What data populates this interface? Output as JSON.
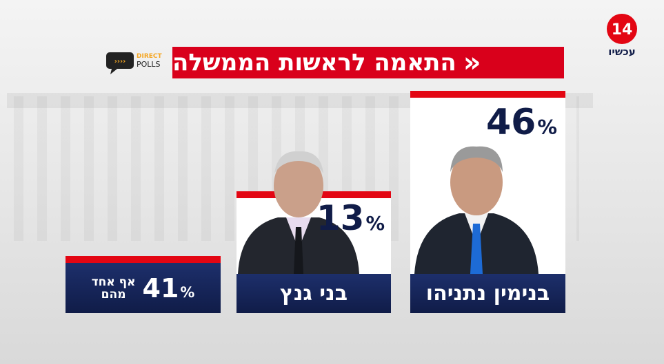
{
  "header": {
    "title": "התאמה לראשות הממשלה",
    "channel_number": "14",
    "channel_name": "עכשיו",
    "pollster": [
      "DIRECT",
      "POLLS"
    ]
  },
  "candidates": [
    {
      "name": "בנימין נתניהו",
      "value": "46",
      "unit": "%"
    },
    {
      "name": "בני גנץ",
      "value": "13",
      "unit": "%"
    }
  ],
  "none": {
    "label_lines": [
      "אף אחד",
      "מהם"
    ],
    "value": "41",
    "unit": "%"
  }
}
